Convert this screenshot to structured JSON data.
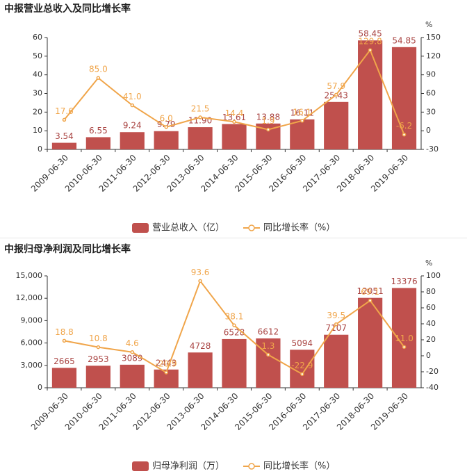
{
  "chart_data": [
    {
      "type": "bar",
      "title": "中报营业总收入及同比增长率",
      "categories": [
        "2009-06-30",
        "2010-06-30",
        "2011-06-30",
        "2012-06-30",
        "2013-06-30",
        "2014-06-30",
        "2015-06-30",
        "2016-06-30",
        "2017-06-30",
        "2018-06-30",
        "2019-06-30"
      ],
      "series": [
        {
          "name": "营业总收入（亿）",
          "color": "#c0504d",
          "values": [
            3.54,
            6.55,
            9.24,
            9.79,
            11.9,
            13.61,
            13.88,
            16.11,
            25.43,
            58.45,
            54.85
          ],
          "value_labels": [
            "3.54",
            "6.55",
            "9.24",
            "9.79",
            "11.90",
            "13.61",
            "13.88",
            "16.11",
            "25.43",
            "58.45",
            "54.85"
          ]
        },
        {
          "name": "同比增长率（%）",
          "type": "line",
          "axis": "y2",
          "color": "#f0a54a",
          "values": [
            17.6,
            85.0,
            41.0,
            6.0,
            21.5,
            14.4,
            1.9,
            16.1,
            57.9,
            129.8,
            -6.2
          ],
          "value_labels": [
            "17.6",
            "85.0",
            "41.0",
            "6.0",
            "21.5",
            "14.4",
            "1.9",
            "16.1",
            "57.9",
            "129.8",
            "-6.2"
          ]
        }
      ],
      "ylim": [
        0,
        60
      ],
      "yticks": [
        0,
        10,
        20,
        30,
        40,
        50,
        60
      ],
      "y2lim": [
        -30,
        150
      ],
      "y2ticks": [
        -30,
        0,
        30,
        60,
        90,
        120,
        150
      ],
      "y2label": "%"
    },
    {
      "type": "bar",
      "title": "中报归母净利润及同比增长率",
      "categories": [
        "2009-06-30",
        "2010-06-30",
        "2011-06-30",
        "2012-06-30",
        "2013-06-30",
        "2014-06-30",
        "2015-06-30",
        "2016-06-30",
        "2017-06-30",
        "2018-06-30",
        "2019-06-30"
      ],
      "series": [
        {
          "name": "归母净利润（万）",
          "color": "#c0504d",
          "values": [
            2665,
            2953,
            3089,
            2443,
            4728,
            6528,
            6612,
            5094,
            7107,
            12051,
            13376
          ]
        },
        {
          "name": "同比增长率（%）",
          "type": "line",
          "axis": "y2",
          "color": "#f0a54a",
          "values": [
            18.8,
            10.8,
            4.6,
            -20.9,
            93.6,
            38.1,
            1.3,
            -22.9,
            39.5,
            69.1,
            11.0
          ],
          "value_labels": [
            "18.8",
            "10.8",
            "4.6",
            "-20.9",
            "93.6",
            "38.1",
            "1.3",
            "-22.9",
            "39.5",
            "69.1",
            "11.0"
          ]
        }
      ],
      "ylim": [
        0,
        15000
      ],
      "yticks": [
        0,
        {
          "value": 3000,
          "label": "3,000"
        },
        {
          "value": 6000,
          "label": "6,000"
        },
        {
          "value": 9000,
          "label": "9,000"
        },
        {
          "value": 12000,
          "label": "12,000"
        },
        {
          "value": 15000,
          "label": "15,000"
        }
      ],
      "y2lim": [
        -40,
        100
      ],
      "y2ticks": [
        -40,
        -20,
        0,
        20,
        40,
        60,
        80,
        100
      ],
      "y2label": "%"
    }
  ]
}
